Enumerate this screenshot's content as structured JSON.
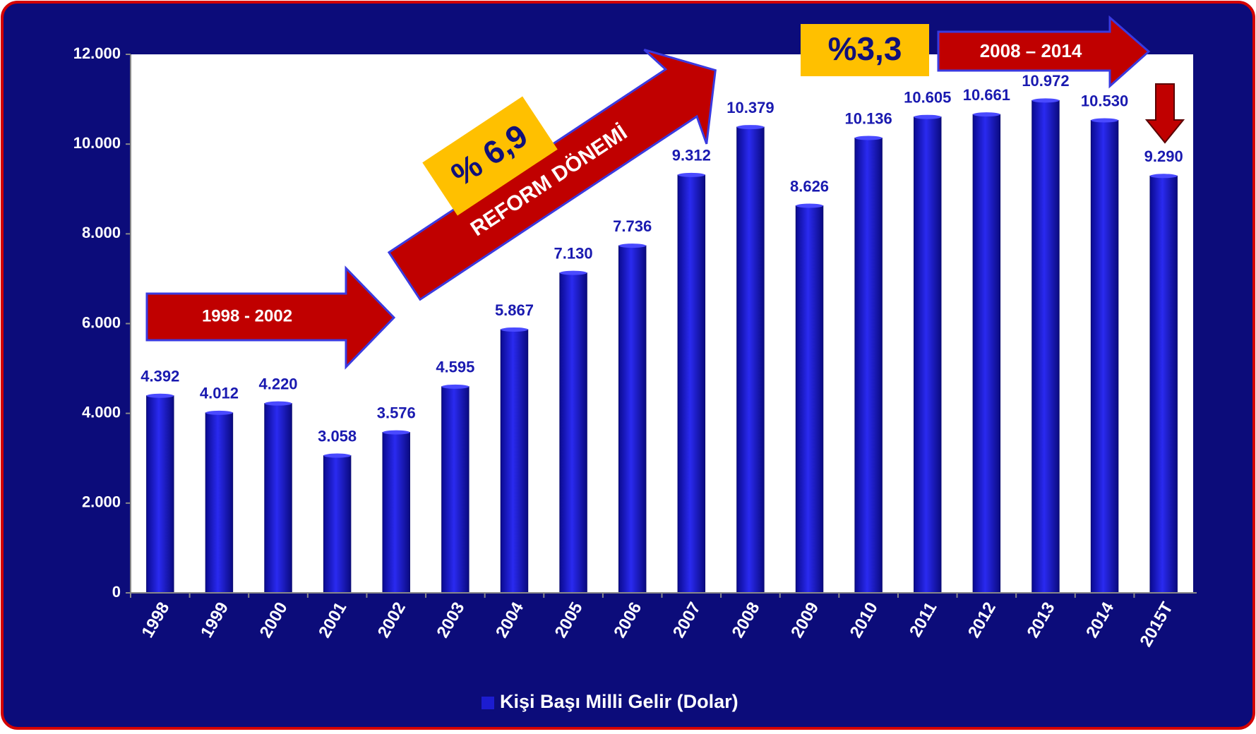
{
  "chart_data": {
    "type": "bar",
    "categories": [
      "1998",
      "1999",
      "2000",
      "2001",
      "2002",
      "2003",
      "2004",
      "2005",
      "2006",
      "2007",
      "2008",
      "2009",
      "2010",
      "2011",
      "2012",
      "2013",
      "2014",
      "2015T"
    ],
    "series": [
      {
        "name": "Kişi Başı Milli Gelir (Dolar)",
        "color": "#1c1cd0",
        "values": [
          4392,
          4012,
          4220,
          3058,
          3576,
          4595,
          5867,
          7130,
          7736,
          9312,
          10379,
          8626,
          10136,
          10605,
          10661,
          10972,
          10530,
          9290
        ],
        "value_labels": [
          "4.392",
          "4.012",
          "4.220",
          "3.058",
          "3.576",
          "4.595",
          "5.867",
          "7.130",
          "7.736",
          "9.312",
          "10.379",
          "8.626",
          "10.136",
          "10.605",
          "10.661",
          "10.972",
          "10.530",
          "9.290"
        ]
      }
    ],
    "ylim": [
      0,
      12000
    ],
    "yticks": [
      0,
      {
        "value": 2000,
        "label": "2.000"
      },
      {
        "value": 4000,
        "label": "4.000"
      },
      {
        "value": 6000,
        "label": "6.000"
      },
      {
        "value": 8000,
        "label": "8.000"
      },
      {
        "value": 10000,
        "label": "10.000"
      },
      {
        "value": 12000,
        "label": "12.000"
      }
    ],
    "annotations": [
      "1998 - 2002",
      "REFORM DÖNEMİ",
      "% 6,9",
      "%3,3",
      "2008 – 2014"
    ],
    "legend": "bottom"
  }
}
